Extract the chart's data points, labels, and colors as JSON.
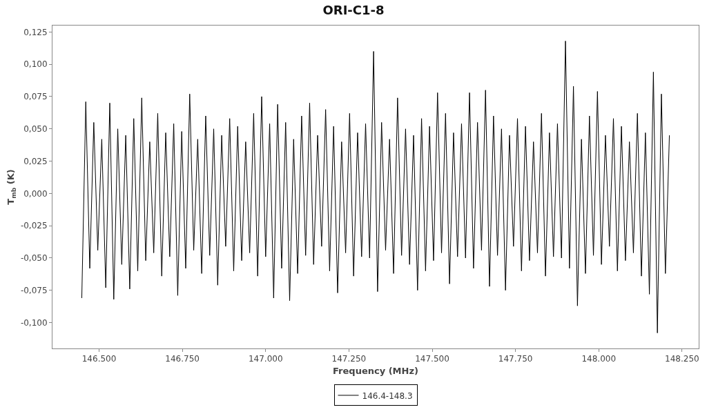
{
  "chart_data": {
    "type": "line",
    "title": "ORI-C1-8",
    "xlabel": "Frequency (MHz)",
    "ylabel": "T$_{mb}$ (K)",
    "xlim": [
      146360,
      148300
    ],
    "ylim": [
      -0.12,
      0.13
    ],
    "xticks": [
      {
        "value": 146500,
        "label": "146.500"
      },
      {
        "value": 146750,
        "label": "146.750"
      },
      {
        "value": 147000,
        "label": "147.000"
      },
      {
        "value": 147250,
        "label": "147.250"
      },
      {
        "value": 147500,
        "label": "147.500"
      },
      {
        "value": 147750,
        "label": "147.750"
      },
      {
        "value": 148000,
        "label": "148.000"
      },
      {
        "value": 148250,
        "label": "148.250"
      }
    ],
    "yticks": [
      {
        "value": -0.1,
        "label": "-0,100"
      },
      {
        "value": -0.075,
        "label": "-0,075"
      },
      {
        "value": -0.05,
        "label": "-0,050"
      },
      {
        "value": -0.025,
        "label": "-0,025"
      },
      {
        "value": 0,
        "label": "0,000"
      },
      {
        "value": 0.025,
        "label": "0,025"
      },
      {
        "value": 0.05,
        "label": "0,050"
      },
      {
        "value": 0.075,
        "label": "0,075"
      },
      {
        "value": 0.1,
        "label": "0,100"
      },
      {
        "value": 0.125,
        "label": "0,125"
      }
    ],
    "grid": false,
    "legend": "bottom",
    "marker": "none",
    "line_style": "solid",
    "x": [
      146448,
      146460,
      146472,
      146484,
      146496,
      146508,
      146520,
      146532,
      146544,
      146556,
      146568,
      146580,
      146592,
      146604,
      146616,
      146628,
      146640,
      146652,
      146664,
      146676,
      146688,
      146700,
      146712,
      146724,
      146736,
      146748,
      146760,
      146772,
      146784,
      146796,
      146808,
      146820,
      146832,
      146844,
      146856,
      146868,
      146880,
      146892,
      146904,
      146916,
      146928,
      146940,
      146952,
      146964,
      146976,
      146988,
      147000,
      147012,
      147024,
      147036,
      147048,
      147060,
      147072,
      147084,
      147096,
      147108,
      147120,
      147132,
      147144,
      147156,
      147168,
      147180,
      147192,
      147204,
      147216,
      147228,
      147240,
      147252,
      147264,
      147276,
      147288,
      147300,
      147312,
      147324,
      147336,
      147348,
      147360,
      147372,
      147384,
      147396,
      147408,
      147420,
      147432,
      147444,
      147456,
      147468,
      147480,
      147492,
      147504,
      147516,
      147528,
      147540,
      147552,
      147564,
      147576,
      147588,
      147600,
      147612,
      147624,
      147636,
      147648,
      147660,
      147672,
      147684,
      147696,
      147708,
      147720,
      147732,
      147744,
      147756,
      147768,
      147780,
      147792,
      147804,
      147816,
      147828,
      147840,
      147852,
      147864,
      147876,
      147888,
      147900,
      147912,
      147924,
      147936,
      147948,
      147960,
      147972,
      147984,
      147996,
      148008,
      148020,
      148032,
      148044,
      148056,
      148068,
      148080,
      148092,
      148104,
      148116,
      148128,
      148140,
      148152,
      148164,
      148176,
      148188,
      148200,
      148212
    ],
    "series": [
      {
        "name": "146.4-148.3",
        "color": "#000000",
        "values": [
          -0.081,
          0.071,
          -0.058,
          0.055,
          -0.044,
          0.042,
          -0.073,
          0.07,
          -0.082,
          0.05,
          -0.055,
          0.045,
          -0.074,
          0.058,
          -0.06,
          0.074,
          -0.052,
          0.04,
          -0.046,
          0.062,
          -0.064,
          0.047,
          -0.049,
          0.054,
          -0.079,
          0.048,
          -0.058,
          0.077,
          -0.044,
          0.042,
          -0.062,
          0.06,
          -0.048,
          0.05,
          -0.071,
          0.045,
          -0.041,
          0.058,
          -0.06,
          0.052,
          -0.052,
          0.04,
          -0.046,
          0.062,
          -0.064,
          0.075,
          -0.049,
          0.054,
          -0.081,
          0.069,
          -0.058,
          0.055,
          -0.083,
          0.042,
          -0.062,
          0.06,
          -0.048,
          0.07,
          -0.055,
          0.045,
          -0.041,
          0.065,
          -0.06,
          0.052,
          -0.077,
          0.04,
          -0.046,
          0.062,
          -0.064,
          0.047,
          -0.049,
          0.054,
          -0.05,
          0.11,
          -0.076,
          0.055,
          -0.044,
          0.042,
          -0.062,
          0.074,
          -0.048,
          0.05,
          -0.055,
          0.045,
          -0.075,
          0.058,
          -0.06,
          0.052,
          -0.052,
          0.078,
          -0.046,
          0.062,
          -0.07,
          0.047,
          -0.049,
          0.054,
          -0.05,
          0.078,
          -0.058,
          0.055,
          -0.044,
          0.08,
          -0.072,
          0.06,
          -0.048,
          0.05,
          -0.075,
          0.045,
          -0.041,
          0.058,
          -0.06,
          0.052,
          -0.052,
          0.04,
          -0.046,
          0.062,
          -0.064,
          0.047,
          -0.049,
          0.054,
          -0.05,
          0.118,
          -0.058,
          0.083,
          -0.087,
          0.042,
          -0.062,
          0.06,
          -0.048,
          0.079,
          -0.055,
          0.045,
          -0.041,
          0.058,
          -0.06,
          0.052,
          -0.052,
          0.04,
          -0.046,
          0.062,
          -0.064,
          0.047,
          -0.078,
          0.094,
          -0.108,
          0.077,
          -0.062,
          0.045
        ]
      }
    ]
  }
}
